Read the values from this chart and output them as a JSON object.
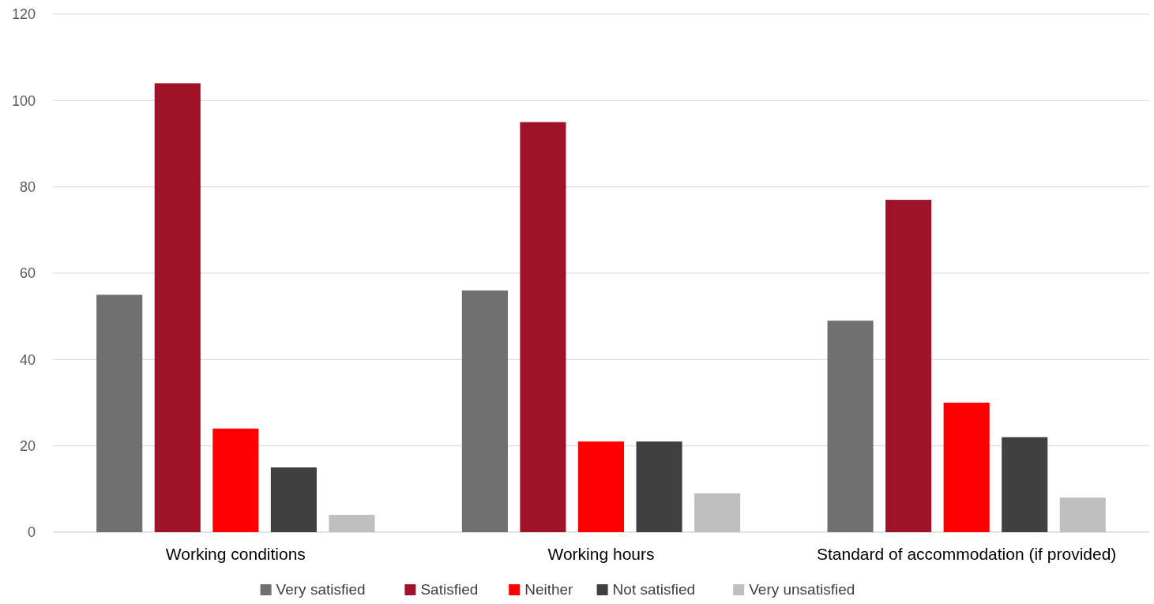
{
  "chart_data": {
    "type": "bar",
    "categories": [
      "Working conditions",
      "Working hours",
      "Standard of accommodation (if provided)"
    ],
    "series": [
      {
        "name": "Very satisfied",
        "color": "#707070",
        "values": [
          55,
          56,
          49
        ]
      },
      {
        "name": "Satisfied",
        "color": "#9e1328",
        "values": [
          104,
          95,
          77
        ]
      },
      {
        "name": "Neither",
        "color": "#ff0000",
        "values": [
          24,
          21,
          30
        ]
      },
      {
        "name": "Not satisfied",
        "color": "#404040",
        "values": [
          15,
          21,
          22
        ]
      },
      {
        "name": "Very unsatisfied",
        "color": "#bfbfbf",
        "values": [
          4,
          9,
          8
        ]
      }
    ],
    "ylim": [
      0,
      120
    ],
    "yticks": [
      0,
      20,
      40,
      60,
      80,
      100,
      120
    ],
    "grid": "y",
    "legend": "bottom"
  }
}
